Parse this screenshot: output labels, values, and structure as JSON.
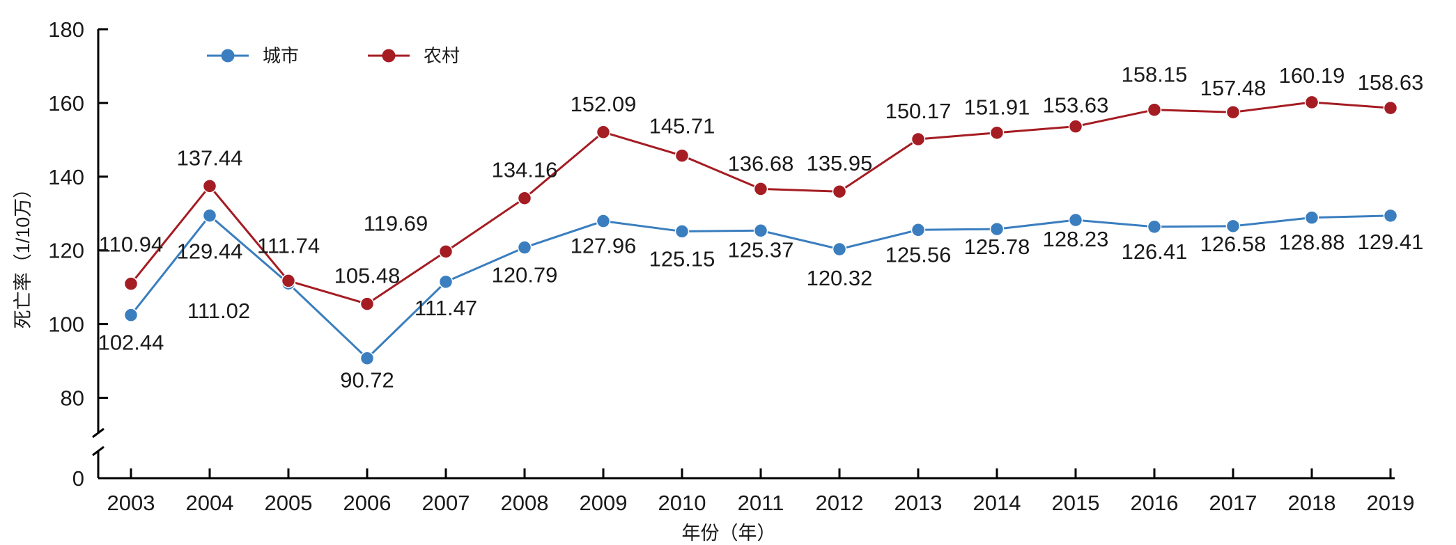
{
  "chart_data": {
    "type": "line",
    "xlabel": "年份（年）",
    "ylabel": "死亡率（1/10万）",
    "x": [
      "2003",
      "2004",
      "2005",
      "2006",
      "2007",
      "2008",
      "2009",
      "2010",
      "2011",
      "2012",
      "2013",
      "2014",
      "2015",
      "2016",
      "2017",
      "2018",
      "2019"
    ],
    "yticks": [
      "0",
      "80",
      "100",
      "120",
      "140",
      "160",
      "180"
    ],
    "ylim": [
      0,
      180
    ],
    "y_axis_break": [
      0,
      70
    ],
    "grid": false,
    "legend_position": "top-left",
    "series": [
      {
        "name": "城市",
        "color": "#3a7ebf",
        "values": [
          102.44,
          129.44,
          111.02,
          90.72,
          111.47,
          120.79,
          127.96,
          125.15,
          125.37,
          120.32,
          125.56,
          125.78,
          128.23,
          126.41,
          126.58,
          128.88,
          129.41
        ],
        "labels": [
          "102.44",
          "129.44",
          "111.02",
          "90.72",
          "111.47",
          "120.79",
          "127.96",
          "125.15",
          "125.37",
          "120.32",
          "125.56",
          "125.78",
          "128.23",
          "126.41",
          "126.58",
          "128.88",
          "129.41"
        ]
      },
      {
        "name": "农村",
        "color": "#a51c23",
        "values": [
          110.94,
          137.44,
          111.74,
          105.48,
          119.69,
          134.16,
          152.09,
          145.71,
          136.68,
          135.95,
          150.17,
          151.91,
          153.63,
          158.15,
          157.48,
          160.19,
          158.63
        ],
        "labels": [
          "110.94",
          "137.44",
          "111.74",
          "105.48",
          "119.69",
          "134.16",
          "152.09",
          "145.71",
          "136.68",
          "135.95",
          "150.17",
          "151.91",
          "153.63",
          "158.15",
          "157.48",
          "160.19",
          "158.63"
        ]
      }
    ]
  }
}
